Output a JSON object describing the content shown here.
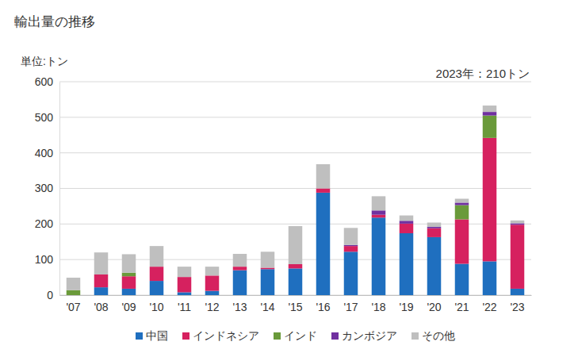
{
  "chart_data": {
    "type": "bar",
    "title": "輸出量の推移",
    "y_label": "単位:トン",
    "annotation": "2023年：210トン",
    "categories": [
      "'07",
      "'08",
      "'09",
      "'10",
      "'11",
      "'12",
      "'13",
      "'14",
      "'15",
      "'16",
      "'17",
      "'18",
      "'19",
      "'20",
      "'21",
      "'22",
      "'23"
    ],
    "series": [
      {
        "name": "中国",
        "color": "#1f6fbf",
        "values": [
          0,
          22,
          18,
          40,
          8,
          12,
          70,
          73,
          75,
          288,
          122,
          218,
          174,
          163,
          88,
          95,
          18
        ]
      },
      {
        "name": "インドネシア",
        "color": "#d6215f",
        "values": [
          0,
          36,
          35,
          40,
          43,
          43,
          10,
          4,
          12,
          12,
          16,
          8,
          27,
          25,
          125,
          347,
          180
        ]
      },
      {
        "name": "インド",
        "color": "#6a9a3a",
        "values": [
          14,
          0,
          10,
          0,
          0,
          0,
          0,
          0,
          0,
          0,
          0,
          0,
          0,
          0,
          40,
          63,
          0
        ]
      },
      {
        "name": "カンボジア",
        "color": "#7030a0",
        "values": [
          0,
          0,
          0,
          0,
          0,
          0,
          0,
          0,
          0,
          0,
          3,
          12,
          8,
          4,
          7,
          10,
          4
        ]
      },
      {
        "name": "その他",
        "color": "#bfbfbf",
        "values": [
          35,
          62,
          52,
          58,
          29,
          25,
          36,
          45,
          107,
          68,
          48,
          40,
          15,
          12,
          11,
          18,
          8
        ]
      }
    ],
    "ylim": [
      0,
      600
    ],
    "yticks": [
      0,
      100,
      200,
      300,
      400,
      500,
      600
    ],
    "stacked": true,
    "grid": true,
    "legend": "bottom"
  }
}
